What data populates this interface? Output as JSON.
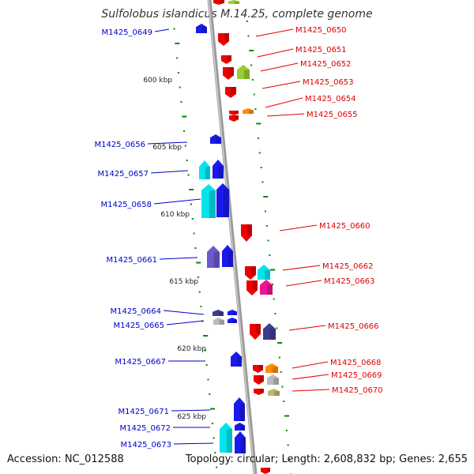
{
  "title": "Sulfolobus islandicus M.14.25, complete genome",
  "accession": "Accession: NC_012588",
  "summary": "Topology: circular; Length: 2,608,832 bp; Genes: 2,655",
  "colors": {
    "forward_label": "#0000cc",
    "reverse_label": "#e00000",
    "backbone": "#999999",
    "tick": "#008800",
    "red": "#ee0000",
    "blue": "#1a1aee",
    "cyan": "#00e5ee",
    "purple": "#6a5acd",
    "magenta": "#ee1493",
    "orange": "#ff8c00",
    "olive": "#bdb76b",
    "lime": "#9acd32",
    "gray": "#bbbbbb",
    "dark_slate": "#3d3d8d"
  },
  "scale_labels": [
    "600 kbp",
    "605 kbp",
    "610 kbp",
    "615 kbp",
    "620 kbp",
    "625 kbp"
  ],
  "forward_genes": [
    {
      "label": "M1425_0649",
      "color": "blue"
    },
    {
      "label": "M1425_0656",
      "color": "blue"
    },
    {
      "label": "M1425_0657",
      "color": "blue"
    },
    {
      "label": "M1425_0658",
      "color": "blue"
    },
    {
      "label": "M1425_0661",
      "color": "blue"
    },
    {
      "label": "M1425_0664",
      "color": "blue"
    },
    {
      "label": "M1425_0665",
      "color": "blue"
    },
    {
      "label": "M1425_0667",
      "color": "blue"
    },
    {
      "label": "M1425_0671",
      "color": "blue"
    },
    {
      "label": "M1425_0672",
      "color": "blue"
    },
    {
      "label": "M1425_0673",
      "color": "blue"
    }
  ],
  "reverse_genes": [
    {
      "label": "M1425_0650",
      "color": "red"
    },
    {
      "label": "M1425_0651",
      "color": "red"
    },
    {
      "label": "M1425_0652",
      "color": "red"
    },
    {
      "label": "M1425_0653",
      "color": "red"
    },
    {
      "label": "M1425_0654",
      "color": "red"
    },
    {
      "label": "M1425_0655",
      "color": "red"
    },
    {
      "label": "M1425_0660",
      "color": "red"
    },
    {
      "label": "M1425_0662",
      "color": "red"
    },
    {
      "label": "M1425_0663",
      "color": "red"
    },
    {
      "label": "M1425_0666",
      "color": "red"
    },
    {
      "label": "M1425_0668",
      "color": "red"
    },
    {
      "label": "M1425_0669",
      "color": "red"
    },
    {
      "label": "M1425_0670",
      "color": "red"
    }
  ]
}
